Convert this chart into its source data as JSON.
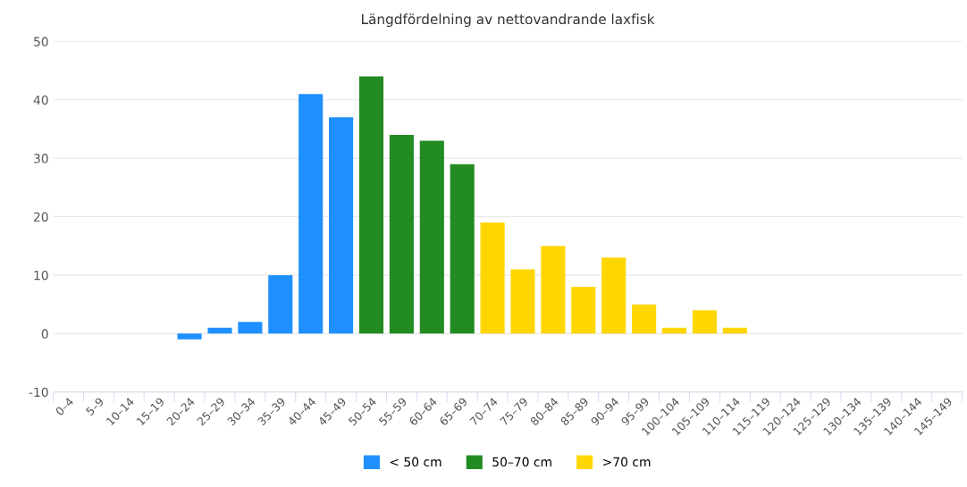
{
  "chart_data": {
    "type": "bar",
    "title": "Längdfördelning av nettovandrande laxfisk",
    "categories": [
      "0–4",
      "5–9",
      "10–14",
      "15–19",
      "20–24",
      "25–29",
      "30–34",
      "35–39",
      "40–44",
      "45–49",
      "50–54",
      "55–59",
      "60–64",
      "65–69",
      "70–74",
      "75–79",
      "80–84",
      "85–89",
      "90–94",
      "95–99",
      "100–104",
      "105–109",
      "110–114",
      "115–119",
      "120–124",
      "125–129",
      "130–134",
      "135–139",
      "140–144",
      "145–149"
    ],
    "series": [
      {
        "name": "< 50 cm",
        "color": "#1e90ff",
        "values": [
          null,
          null,
          null,
          null,
          -1,
          1,
          2,
          10,
          41,
          37,
          null,
          null,
          null,
          null,
          null,
          null,
          null,
          null,
          null,
          null,
          null,
          null,
          null,
          null,
          null,
          null,
          null,
          null,
          null,
          null
        ]
      },
      {
        "name": "50–70 cm",
        "color": "#228b22",
        "values": [
          null,
          null,
          null,
          null,
          null,
          null,
          null,
          null,
          null,
          null,
          44,
          34,
          33,
          29,
          null,
          null,
          null,
          null,
          null,
          null,
          null,
          null,
          null,
          null,
          null,
          null,
          null,
          null,
          null,
          null
        ]
      },
      {
        "name": ">70 cm",
        "color": "#ffd700",
        "values": [
          null,
          null,
          null,
          null,
          null,
          null,
          null,
          null,
          null,
          null,
          null,
          null,
          null,
          null,
          19,
          11,
          15,
          8,
          13,
          5,
          1,
          4,
          1,
          null,
          null,
          null,
          null,
          null,
          null,
          null
        ]
      }
    ],
    "ylim": [
      -10,
      50
    ],
    "yticks": [
      -10,
      0,
      10,
      20,
      30,
      40,
      50
    ],
    "grid": "y",
    "legend": "bottom"
  }
}
